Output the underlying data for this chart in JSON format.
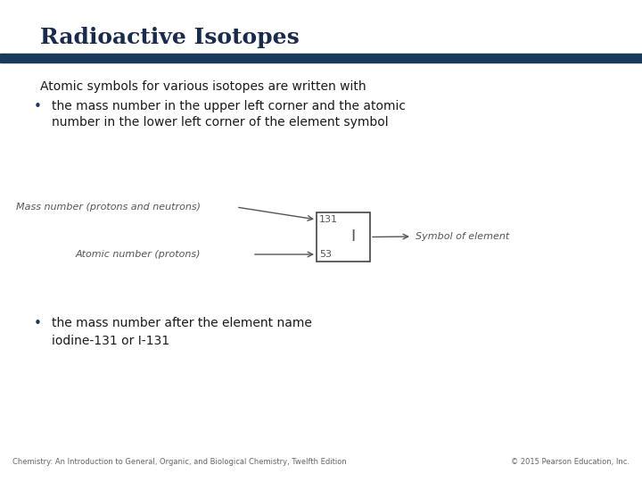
{
  "title": "Radioactive Isotopes",
  "title_color": "#1a2a4a",
  "title_fontsize": 18,
  "bar_color": "#1a3a5c",
  "subtitle": "Atomic symbols for various isotopes are written with",
  "bullet1_line1": "the mass number in the upper left corner and the atomic",
  "bullet1_line2": "number in the lower left corner of the element symbol",
  "bullet2_line1": "the mass number after the element name",
  "bullet2_line2": "iodine-131 or I-131",
  "diagram_label_mass": "Mass number (protons and neutrons)",
  "diagram_label_atomic": "Atomic number (protons)",
  "diagram_label_symbol": "Symbol of element",
  "isotope_mass": "131",
  "isotope_atomic": "53",
  "isotope_symbol": "I",
  "footer_left": "Chemistry: An Introduction to General, Organic, and Biological Chemistry, Twelfth Edition",
  "footer_right": "© 2015 Pearson Education, Inc.",
  "bg_color": "#ffffff",
  "text_color": "#1a1a1a",
  "diagram_text_color": "#555555",
  "bullet_color": "#1a3a5c",
  "footer_color": "#666666"
}
